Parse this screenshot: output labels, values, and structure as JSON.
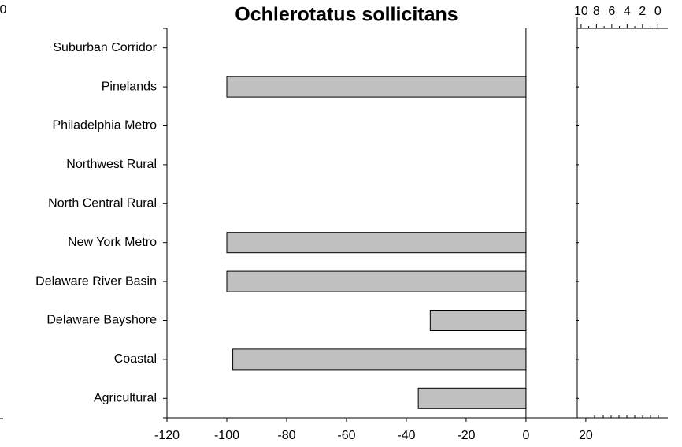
{
  "chart_data": [
    {
      "type": "barh",
      "title": "Ochlerotatus sollicitans",
      "categories": [
        "Suburban Corridor",
        "Pinelands",
        "Philadelphia Metro",
        "Northwest Rural",
        "North Central Rural",
        "New York Metro",
        "Delaware River Basin",
        "Delaware Bayshore",
        "Coastal",
        "Agricultural"
      ],
      "values": [
        null,
        -100,
        null,
        null,
        null,
        -100,
        -100,
        -32,
        -98,
        -36
      ],
      "color": "#c0c0c0",
      "xlim": [
        -120,
        47.4
      ],
      "xticks": [
        -120,
        -100,
        -80,
        -60,
        -40,
        -20,
        0,
        20
      ]
    },
    {
      "type": "axis",
      "xlim": [
        10.5,
        -1.3
      ],
      "xticks": [
        10,
        8,
        6,
        4,
        2,
        0
      ]
    },
    {
      "type": "fragment",
      "title": "0"
    }
  ]
}
